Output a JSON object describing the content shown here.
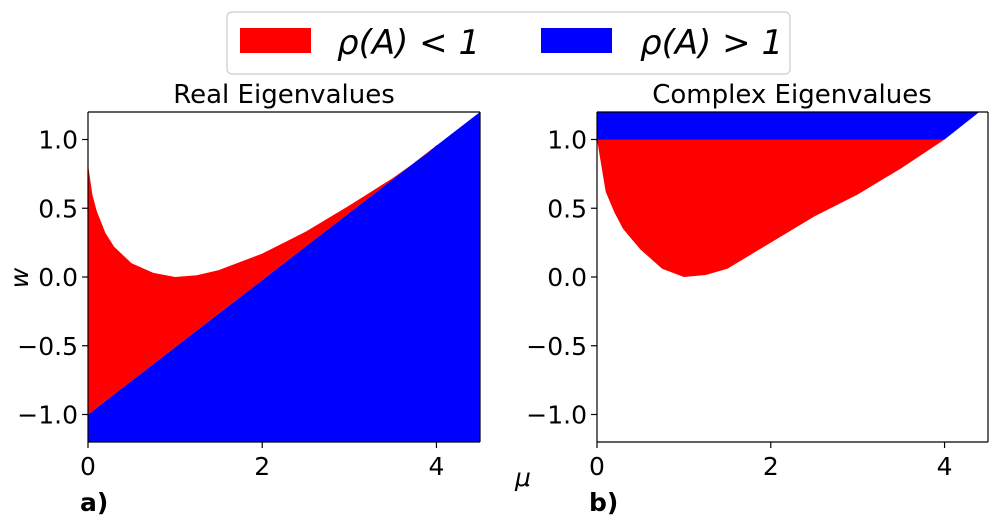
{
  "legend": {
    "entries": [
      {
        "label": "ρ(A) < 1",
        "color": "#ff0000"
      },
      {
        "label": "ρ(A) > 1",
        "color": "#0000ff"
      }
    ],
    "placement": "top-center"
  },
  "shared_xlabel": "μ",
  "chart_data": [
    {
      "type": "area",
      "panel_label": "a)",
      "title": "Real Eigenvalues",
      "xlabel": "",
      "ylabel": "w",
      "xlim": [
        0,
        4.5
      ],
      "ylim": [
        -1.2,
        1.2
      ],
      "xticks": [
        0,
        2,
        4
      ],
      "xtick_labels": [
        "0",
        "2",
        "4"
      ],
      "yticks": [
        1.0,
        0.5,
        0.0,
        -0.5,
        -1.0
      ],
      "ytick_labels": [
        "1.0",
        "0.5",
        "0.0",
        "−0.5",
        "−1.0"
      ],
      "series": [
        {
          "name": "ρ(A) < 1",
          "color": "#ff0000",
          "region": "between lower boundary w = μ/2 − 1 and upper boundary curve",
          "upper_boundary": {
            "x": [
              0,
              0.05,
              0.1,
              0.2,
              0.3,
              0.5,
              0.75,
              1.0,
              1.25,
              1.5,
              2.0,
              2.5,
              3.0,
              3.5,
              3.9,
              4.0
            ],
            "y": [
              0.82,
              0.6,
              0.48,
              0.32,
              0.22,
              0.1,
              0.03,
              0.0,
              0.013,
              0.05,
              0.17,
              0.33,
              0.52,
              0.72,
              0.9,
              0.96
            ]
          }
        },
        {
          "name": "ρ(A) > 1",
          "color": "#0000ff",
          "region": "below line w = μ/2 − 1",
          "boundary": {
            "x": [
              0,
              4.5
            ],
            "y": [
              -1.0,
              1.2
            ]
          }
        }
      ],
      "grid": false
    },
    {
      "type": "area",
      "panel_label": "b)",
      "title": "Complex Eigenvalues",
      "xlabel": "",
      "ylabel": "",
      "xlim": [
        0,
        4.5
      ],
      "ylim": [
        -1.2,
        1.2
      ],
      "xticks": [
        0,
        2,
        4
      ],
      "xtick_labels": [
        "0",
        "2",
        "4"
      ],
      "yticks": [
        1.0,
        0.5,
        0.0,
        -0.5,
        -1.0
      ],
      "ytick_labels": [
        "1.0",
        "0.5",
        "0.0",
        "−0.5",
        "−1.0"
      ],
      "series": [
        {
          "name": "ρ(A) < 1",
          "color": "#ff0000",
          "region": "between lower boundary curve and w = 1",
          "lower_boundary": {
            "x": [
              0,
              0.1,
              0.2,
              0.3,
              0.5,
              0.75,
              1.0,
              1.25,
              1.5,
              2.0,
              2.5,
              3.0,
              3.5,
              4.0
            ],
            "y": [
              1.0,
              0.62,
              0.47,
              0.35,
              0.2,
              0.06,
              0.0,
              0.015,
              0.06,
              0.25,
              0.44,
              0.6,
              0.79,
              1.0
            ]
          }
        },
        {
          "name": "ρ(A) > 1",
          "color": "#0000ff",
          "region": "above w = 1, left of line w = μ/2 − 1",
          "y_range": [
            1.0,
            1.2
          ],
          "right_boundary": {
            "x": [
              4.0,
              4.4
            ],
            "y": [
              1.0,
              1.2
            ]
          }
        }
      ],
      "grid": false
    }
  ]
}
